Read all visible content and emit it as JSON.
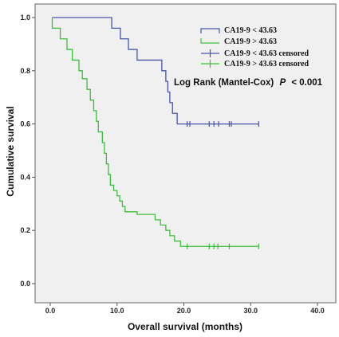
{
  "chart_data": {
    "type": "line",
    "xlabel": "Overall survival (months)",
    "ylabel": "Cumulative survival",
    "xlim": [
      0,
      40
    ],
    "ylim": [
      0,
      1
    ],
    "x_ticks": [
      "0.0",
      "10.0",
      "20.0",
      "30.0",
      "40.0"
    ],
    "y_ticks": [
      "0.0",
      "0.2",
      "0.4",
      "0.6",
      "0.8",
      "1.0"
    ],
    "grid": false,
    "background": "#f0f0f0",
    "legend_position": "top-right",
    "annotation": {
      "text": "Log Rank (Mantel-Cox)",
      "p_symbol": "P",
      "p_value": "< 0.001"
    },
    "series": [
      {
        "name": "CA19-9 < 43.63",
        "color": "#4a55aa",
        "step": true,
        "points": [
          [
            0.3,
            1.0
          ],
          [
            9.2,
            1.0
          ],
          [
            9.2,
            0.96
          ],
          [
            10.5,
            0.96
          ],
          [
            10.5,
            0.92
          ],
          [
            11.7,
            0.92
          ],
          [
            11.7,
            0.88
          ],
          [
            13.0,
            0.88
          ],
          [
            13.0,
            0.84
          ],
          [
            16.7,
            0.84
          ],
          [
            16.7,
            0.8
          ],
          [
            17.3,
            0.8
          ],
          [
            17.3,
            0.76
          ],
          [
            17.6,
            0.76
          ],
          [
            17.6,
            0.72
          ],
          [
            17.9,
            0.72
          ],
          [
            17.9,
            0.68
          ],
          [
            18.3,
            0.68
          ],
          [
            18.3,
            0.64
          ],
          [
            19.0,
            0.64
          ],
          [
            19.0,
            0.6
          ],
          [
            31.2,
            0.6
          ]
        ],
        "censored_name": "CA19-9 < 43.63 censored",
        "censored": [
          [
            20.5,
            0.6
          ],
          [
            20.9,
            0.6
          ],
          [
            23.8,
            0.6
          ],
          [
            24.5,
            0.6
          ],
          [
            25.2,
            0.6
          ],
          [
            26.8,
            0.6
          ],
          [
            27.1,
            0.6
          ],
          [
            31.2,
            0.6
          ]
        ]
      },
      {
        "name": "CA19-9 > 43.63",
        "color": "#3cbf3c",
        "step": true,
        "points": [
          [
            0.3,
            1.0
          ],
          [
            0.3,
            0.96
          ],
          [
            1.5,
            0.96
          ],
          [
            1.5,
            0.92
          ],
          [
            2.5,
            0.92
          ],
          [
            2.5,
            0.88
          ],
          [
            3.3,
            0.88
          ],
          [
            3.3,
            0.84
          ],
          [
            4.3,
            0.84
          ],
          [
            4.3,
            0.8
          ],
          [
            4.8,
            0.8
          ],
          [
            4.8,
            0.77
          ],
          [
            5.5,
            0.77
          ],
          [
            5.5,
            0.73
          ],
          [
            6.0,
            0.73
          ],
          [
            6.0,
            0.69
          ],
          [
            6.5,
            0.69
          ],
          [
            6.5,
            0.65
          ],
          [
            6.9,
            0.65
          ],
          [
            6.9,
            0.61
          ],
          [
            7.2,
            0.61
          ],
          [
            7.2,
            0.57
          ],
          [
            7.8,
            0.57
          ],
          [
            7.8,
            0.53
          ],
          [
            8.1,
            0.53
          ],
          [
            8.1,
            0.49
          ],
          [
            8.4,
            0.49
          ],
          [
            8.4,
            0.45
          ],
          [
            8.7,
            0.45
          ],
          [
            8.7,
            0.41
          ],
          [
            9.0,
            0.41
          ],
          [
            9.0,
            0.37
          ],
          [
            9.5,
            0.37
          ],
          [
            9.5,
            0.35
          ],
          [
            10.0,
            0.35
          ],
          [
            10.0,
            0.33
          ],
          [
            10.4,
            0.33
          ],
          [
            10.4,
            0.31
          ],
          [
            10.8,
            0.31
          ],
          [
            10.8,
            0.29
          ],
          [
            11.2,
            0.29
          ],
          [
            11.2,
            0.27
          ],
          [
            13.0,
            0.27
          ],
          [
            13.0,
            0.26
          ],
          [
            15.7,
            0.26
          ],
          [
            15.7,
            0.24
          ],
          [
            16.5,
            0.24
          ],
          [
            16.5,
            0.22
          ],
          [
            17.3,
            0.22
          ],
          [
            17.3,
            0.2
          ],
          [
            17.9,
            0.2
          ],
          [
            17.9,
            0.18
          ],
          [
            18.6,
            0.18
          ],
          [
            18.6,
            0.16
          ],
          [
            19.5,
            0.16
          ],
          [
            19.5,
            0.14
          ],
          [
            31.2,
            0.14
          ]
        ],
        "censored_name": "CA19-9 > 43.63 censored",
        "censored": [
          [
            20.5,
            0.14
          ],
          [
            23.8,
            0.14
          ],
          [
            24.5,
            0.14
          ],
          [
            25.1,
            0.14
          ],
          [
            26.8,
            0.14
          ],
          [
            31.2,
            0.14
          ]
        ]
      }
    ]
  }
}
